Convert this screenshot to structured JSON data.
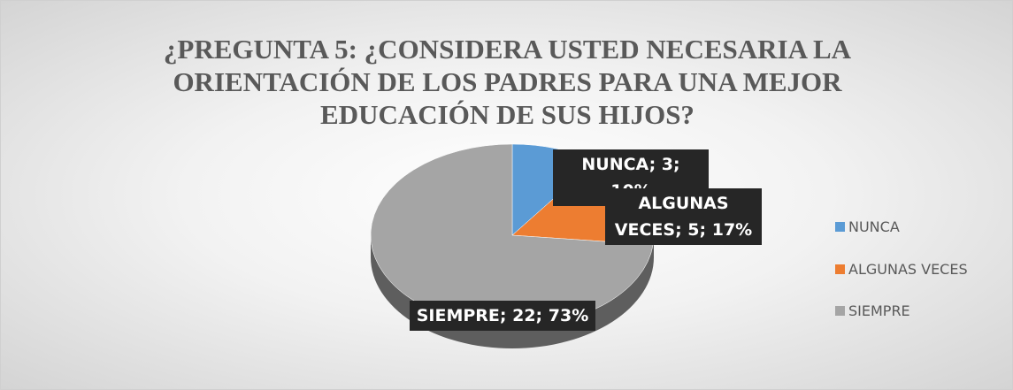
{
  "chart_data": {
    "type": "pie",
    "title": "¿PREGUNTA 5: ¿CONSIDERA USTED NECESARIA LA ORIENTACIÓN DE LOS PADRES PARA UNA MEJOR EDUCACIÓN DE SUS HIJOS?",
    "categories": [
      "NUNCA",
      "ALGUNAS VECES",
      "SIEMPRE"
    ],
    "values": [
      3,
      5,
      22
    ],
    "value_labels": [
      "NUNCA; 3; 10%",
      "ALGUNAS VECES; 5; 17%",
      "SIEMPRE; 22; 73%"
    ],
    "colors": [
      "#5b9bd5",
      "#ed7d31",
      "#a5a5a5"
    ],
    "legend": "right"
  }
}
